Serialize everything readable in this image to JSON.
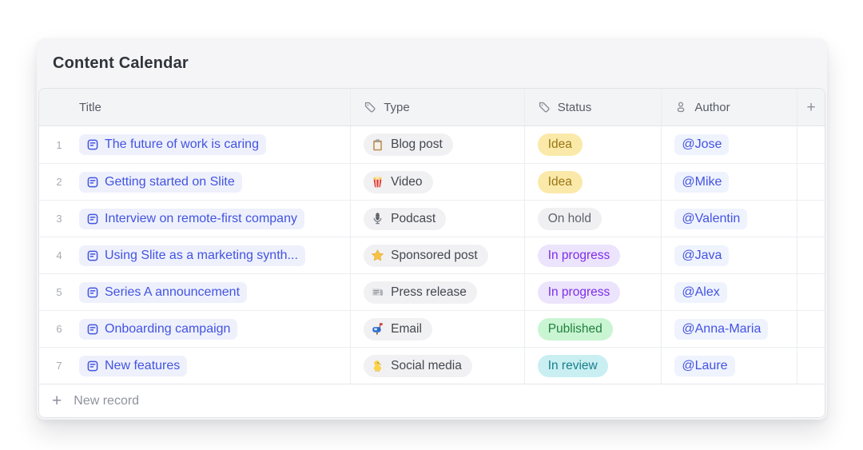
{
  "header": {
    "title": "Content Calendar"
  },
  "columns": [
    {
      "label": "Title",
      "icon": null
    },
    {
      "label": "Type",
      "icon": "tag"
    },
    {
      "label": "Status",
      "icon": "tag"
    },
    {
      "label": "Author",
      "icon": "person"
    }
  ],
  "icons": {
    "plus": "+"
  },
  "rows": [
    {
      "num": "1",
      "title": "The future of work is caring",
      "type_icon": "clipboard",
      "type": "Blog post",
      "status": "Idea",
      "status_key": "idea",
      "author": "@Jose"
    },
    {
      "num": "2",
      "title": "Getting started on Slite",
      "type_icon": "popcorn",
      "type": "Video",
      "status": "Idea",
      "status_key": "idea",
      "author": "@Mike"
    },
    {
      "num": "3",
      "title": "Interview on remote-first company",
      "type_icon": "microphone",
      "type": "Podcast",
      "status": "On hold",
      "status_key": "on_hold",
      "author": "@Valentin"
    },
    {
      "num": "4",
      "title": "Using Slite as a marketing synth...",
      "type_icon": "star",
      "type": "Sponsored post",
      "status": "In progress",
      "status_key": "in_progress",
      "author": "@Java"
    },
    {
      "num": "5",
      "title": "Series A announcement",
      "type_icon": "newspaper",
      "type": "Press release",
      "status": "In progress",
      "status_key": "in_progress",
      "author": "@Alex"
    },
    {
      "num": "6",
      "title": "Onboarding campaign",
      "type_icon": "mailbox",
      "type": "Email",
      "status": "Published",
      "status_key": "published",
      "author": "@Anna-Maria"
    },
    {
      "num": "7",
      "title": "New features",
      "type_icon": "chick",
      "type": "Social media",
      "status": "In review",
      "status_key": "in_review",
      "author": "@Laure"
    }
  ],
  "colors": {
    "accent": "#4353E0",
    "title_pill_bg": "#EEF1FC",
    "author_pill_bg": "#EFF3FE",
    "type_pill_bg": "#F1F1F3",
    "status": {
      "idea": {
        "bg": "#FAE9A9",
        "text": "#9A7514"
      },
      "on_hold": {
        "bg": "#F0F0F2",
        "text": "#5D626B"
      },
      "in_progress": {
        "bg": "#ECE4FC",
        "text": "#7C2EE8"
      },
      "published": {
        "bg": "#C9F5D2",
        "text": "#23803F"
      },
      "in_review": {
        "bg": "#C9EFF2",
        "text": "#187F8B"
      }
    }
  },
  "footer": {
    "new_record_label": "New record"
  }
}
